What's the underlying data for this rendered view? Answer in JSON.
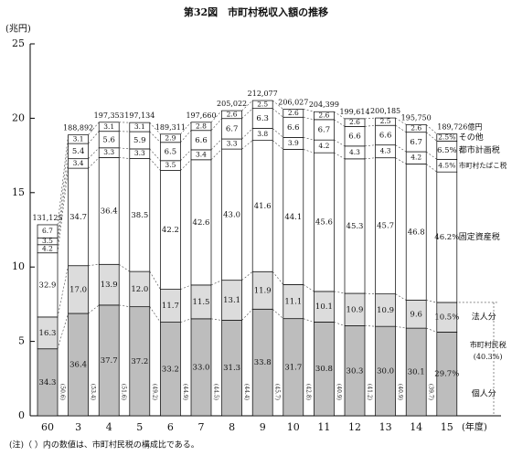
{
  "chart_data": {
    "type": "stacked_bar",
    "title": "第32図　市町村税収入額の推移",
    "y_unit": "(兆円)",
    "x_unit": "(年度)",
    "note": "(注)（ ）内の数値は、市町村民税の構成比である。",
    "categories": [
      "60",
      "3",
      "4",
      "5",
      "6",
      "7",
      "8",
      "9",
      "10",
      "11",
      "12",
      "13",
      "14",
      "15"
    ],
    "ylim": [
      0,
      25
    ],
    "yticks": [
      0,
      5,
      10,
      15,
      20,
      25
    ],
    "totals": {
      "values": [
        13.1125,
        18.8892,
        19.7353,
        19.7134,
        18.9311,
        19.766,
        20.5022,
        21.2077,
        20.6027,
        20.4399,
        19.9614,
        20.0185,
        19.575,
        18.9726
      ],
      "value_labels": [
        "131,125",
        "188,892",
        "197,353",
        "197,134",
        "189,311",
        "197,660",
        "205,022",
        "212,077",
        "206,027",
        "204,399",
        "199,614",
        "200,185",
        "195,750",
        "189,726億円"
      ]
    },
    "series": [
      {
        "name": "個人分",
        "color": "#bdbdbd",
        "values": [
          4.5,
          6.88,
          7.44,
          7.33,
          6.29,
          6.52,
          6.42,
          7.17,
          6.53,
          6.3,
          6.05,
          6.01,
          5.89,
          5.63
        ],
        "shares": [
          "34.3",
          "36.4",
          "37.7",
          "37.2",
          "33.2",
          "33.0",
          "31.3",
          "33.8",
          "31.7",
          "30.8",
          "30.3",
          "30.0",
          "30.1",
          "29.7%"
        ]
      },
      {
        "name": "法人分",
        "color": "#dcdcdc",
        "values": [
          2.14,
          3.21,
          2.74,
          2.37,
          2.21,
          2.27,
          2.69,
          2.52,
          2.29,
          2.06,
          2.18,
          2.18,
          1.88,
          1.99
        ],
        "shares": [
          "16.3",
          "17.0",
          "13.9",
          "12.0",
          "11.7",
          "11.5",
          "13.1",
          "11.9",
          "11.1",
          "10.1",
          "10.9",
          "10.9",
          "9.6",
          "10.5%"
        ]
      },
      {
        "name": "固定資産税",
        "color": "#ffffff",
        "values": [
          4.31,
          6.55,
          7.18,
          7.59,
          7.99,
          8.42,
          8.82,
          8.82,
          9.09,
          9.32,
          9.04,
          9.15,
          9.16,
          8.77
        ],
        "shares": [
          "32.9",
          "34.7",
          "36.4",
          "38.5",
          "42.2",
          "42.6",
          "43.0",
          "41.6",
          "44.1",
          "45.6",
          "45.3",
          "45.7",
          "46.8",
          "46.2%"
        ]
      },
      {
        "name": "市町村たばこ税",
        "color": "#ffffff",
        "values": [
          0.55,
          0.64,
          0.65,
          0.65,
          0.66,
          0.67,
          0.68,
          0.81,
          0.8,
          0.86,
          0.86,
          0.86,
          0.82,
          0.85
        ],
        "shares": [
          "4.2",
          "3.4",
          "3.3",
          "3.3",
          "3.5",
          "3.4",
          "3.3",
          "3.8",
          "3.9",
          "4.2",
          "4.3",
          "4.3",
          "4.2",
          "4.5%"
        ]
      },
      {
        "name": "都市計画税",
        "color": "#ffffff",
        "values": [
          0.46,
          1.02,
          1.11,
          1.16,
          1.23,
          1.3,
          1.37,
          1.34,
          1.36,
          1.37,
          1.32,
          1.32,
          1.31,
          1.23
        ],
        "shares": [
          "3.5",
          "5.4",
          "5.6",
          "5.9",
          "6.5",
          "6.6",
          "6.7",
          "6.3",
          "6.6",
          "6.7",
          "6.6",
          "6.6",
          "6.7",
          "6.5%"
        ]
      },
      {
        "name": "その他",
        "color": "#ffffff",
        "values": [
          0.88,
          0.59,
          0.61,
          0.61,
          0.55,
          0.55,
          0.53,
          0.53,
          0.54,
          0.53,
          0.52,
          0.5,
          0.51,
          0.47
        ],
        "shares": [
          "6.7",
          "3.1",
          "3.1",
          "3.1",
          "2.9",
          "2.8",
          "2.6",
          "2.5",
          "2.6",
          "2.6",
          "2.6",
          "2.5",
          "2.6",
          "2.5%"
        ]
      }
    ],
    "resident_tax": {
      "name": "市町村民税",
      "share_label": "(40.3%)",
      "shares": [
        "(50.6)",
        "(53.4)",
        "(51.6)",
        "(49.2)",
        "(44.9)",
        "(44.5)",
        "(44.4)",
        "(45.7)",
        "(42.8)",
        "(40.9)",
        "(41.2)",
        "(40.9)",
        "(39.7)",
        null
      ]
    }
  }
}
